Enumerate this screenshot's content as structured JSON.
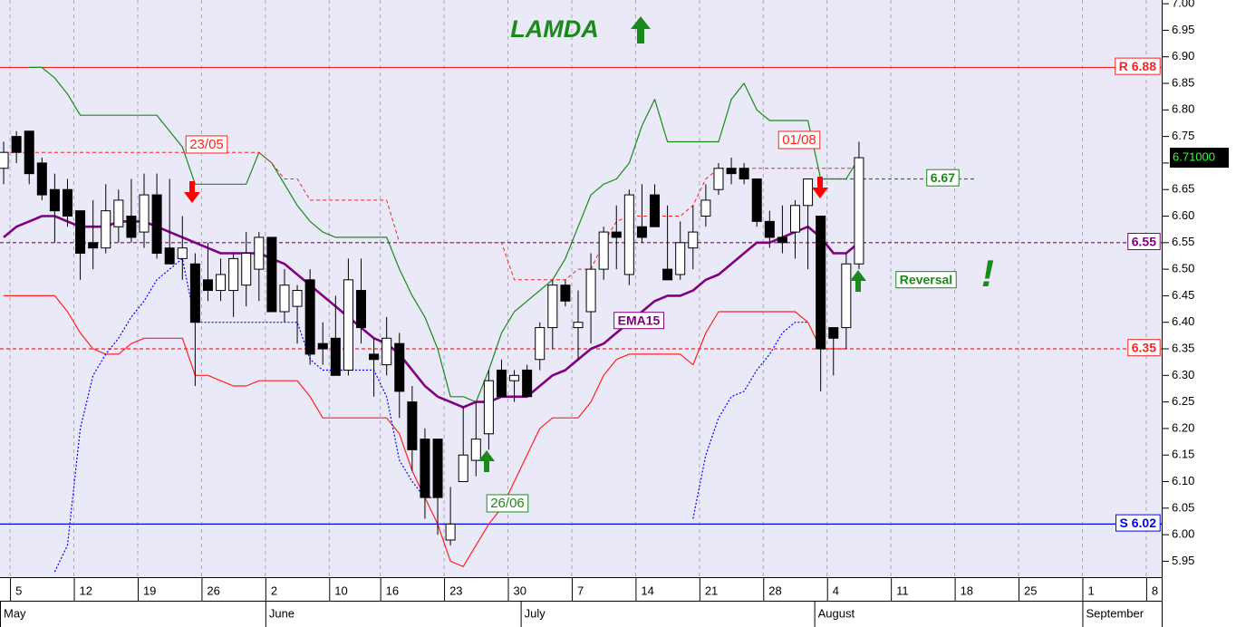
{
  "chart_data": {
    "type": "candlestick",
    "title": "LAMDA",
    "title_color": "#1a8a1a",
    "background": "#e9e9f8",
    "grid": true,
    "categories": [
      null,
      "5",
      null,
      null,
      null,
      null,
      "12",
      null,
      null,
      null,
      null,
      "19",
      null,
      null,
      null,
      null,
      "26",
      null,
      null,
      null,
      null,
      "2",
      null,
      null,
      null,
      null,
      "10",
      null,
      null,
      null,
      "16",
      null,
      null,
      null,
      null,
      "23",
      null,
      null,
      null,
      null,
      "30",
      null,
      null,
      null,
      null,
      "7",
      null,
      null,
      null,
      null,
      "14",
      null,
      null,
      null,
      null,
      "21",
      null,
      null,
      null,
      null,
      "28",
      null,
      null,
      null,
      null,
      "4",
      null,
      null,
      null,
      null,
      "11",
      null,
      null,
      null,
      null,
      "18",
      null,
      null,
      null,
      null,
      "25",
      null,
      null,
      null,
      null,
      "1",
      null,
      null,
      null,
      null,
      "8"
    ],
    "months": [
      "May",
      null,
      null,
      null,
      null,
      null,
      null,
      null,
      null,
      null,
      null,
      null,
      null,
      null,
      null,
      null,
      null,
      null,
      null,
      null,
      null,
      "June",
      null,
      null,
      null,
      null,
      null,
      null,
      null,
      null,
      null,
      null,
      null,
      null,
      null,
      null,
      null,
      null,
      null,
      null,
      null,
      "July",
      null,
      null,
      null,
      null,
      null,
      null,
      null,
      null,
      null,
      null,
      null,
      null,
      null,
      null,
      null,
      null,
      null,
      null,
      null,
      null,
      null,
      null,
      "August",
      null,
      null,
      null,
      null,
      null,
      null,
      null,
      null,
      null,
      null,
      null,
      null,
      null,
      null,
      null,
      null,
      null,
      null,
      null,
      null,
      "September",
      null,
      null,
      null,
      null,
      null
    ],
    "open": [
      6.69,
      6.75,
      6.76,
      6.7,
      6.65,
      6.65,
      6.61,
      6.55,
      6.54,
      6.58,
      6.6,
      6.57,
      6.64,
      6.54,
      6.52,
      6.51,
      6.48,
      6.46,
      6.46,
      6.47,
      6.5,
      6.56,
      6.42,
      6.43,
      6.48,
      6.36,
      6.37,
      6.31,
      6.46,
      6.34,
      6.32,
      6.36,
      6.25,
      6.18,
      6.18,
      5.99,
      6.1,
      6.14,
      6.19,
      6.31,
      6.29,
      6.31,
      6.33,
      6.39,
      6.47,
      6.39,
      6.42,
      6.5,
      6.57,
      6.49,
      6.58,
      6.64,
      6.5,
      6.49,
      6.54,
      6.6,
      6.65,
      6.69,
      6.69,
      6.67,
      6.59,
      6.56,
      6.57,
      6.62,
      6.6,
      6.39,
      6.39,
      6.51,
      null,
      null,
      null,
      null,
      null,
      null,
      null,
      null,
      null,
      null,
      null,
      null,
      null,
      null,
      null,
      null,
      null,
      null,
      null,
      null,
      null,
      null,
      null
    ],
    "high": [
      6.74,
      6.76,
      6.76,
      6.71,
      6.68,
      6.67,
      6.61,
      6.63,
      6.66,
      6.65,
      6.67,
      6.68,
      6.68,
      6.67,
      6.6,
      6.53,
      6.55,
      6.52,
      6.53,
      6.57,
      6.57,
      6.56,
      6.5,
      6.47,
      6.5,
      6.4,
      6.45,
      6.52,
      6.52,
      6.37,
      6.41,
      6.38,
      6.28,
      6.2,
      6.18,
      6.09,
      6.24,
      6.25,
      6.31,
      6.33,
      6.31,
      6.32,
      6.4,
      6.48,
      6.48,
      6.46,
      6.53,
      6.58,
      6.62,
      6.65,
      6.66,
      6.66,
      6.62,
      6.59,
      6.62,
      6.66,
      6.7,
      6.71,
      6.7,
      6.67,
      6.61,
      6.62,
      6.63,
      6.67,
      6.6,
      6.39,
      6.53,
      6.74,
      null,
      null,
      null,
      null,
      null,
      null,
      null,
      null,
      null,
      null,
      null,
      null,
      null,
      null,
      null,
      null,
      null,
      null,
      null,
      null,
      null,
      null,
      null
    ],
    "low": [
      6.66,
      6.7,
      6.66,
      6.63,
      6.55,
      6.58,
      6.48,
      6.5,
      6.53,
      6.55,
      6.55,
      6.54,
      6.52,
      6.51,
      6.48,
      6.28,
      6.44,
      6.44,
      6.41,
      6.43,
      6.44,
      6.42,
      6.4,
      6.36,
      6.32,
      6.32,
      6.3,
      6.3,
      6.36,
      6.26,
      6.3,
      6.22,
      6.12,
      6.03,
      6.0,
      5.98,
      6.1,
      6.11,
      6.16,
      6.26,
      6.25,
      6.26,
      6.31,
      6.35,
      6.43,
      6.33,
      6.36,
      6.48,
      6.5,
      6.47,
      6.55,
      6.58,
      6.48,
      6.48,
      6.5,
      6.58,
      6.64,
      6.66,
      6.66,
      6.58,
      6.54,
      6.53,
      6.52,
      6.5,
      6.27,
      6.3,
      6.35,
      6.5,
      null,
      null,
      null,
      null,
      null,
      null,
      null,
      null,
      null,
      null,
      null,
      null,
      null,
      null,
      null,
      null,
      null,
      null,
      null,
      null,
      null,
      null,
      null
    ],
    "close": [
      6.72,
      6.72,
      6.68,
      6.64,
      6.61,
      6.6,
      6.53,
      6.54,
      6.61,
      6.63,
      6.56,
      6.64,
      6.53,
      6.51,
      6.54,
      6.4,
      6.46,
      6.49,
      6.52,
      6.53,
      6.56,
      6.42,
      6.47,
      6.46,
      6.34,
      6.35,
      6.3,
      6.48,
      6.39,
      6.33,
      6.37,
      6.27,
      6.16,
      6.07,
      6.07,
      6.02,
      6.15,
      6.18,
      6.29,
      6.26,
      6.3,
      6.26,
      6.39,
      6.47,
      6.44,
      6.4,
      6.5,
      6.57,
      6.56,
      6.64,
      6.56,
      6.58,
      6.48,
      6.55,
      6.57,
      6.63,
      6.69,
      6.68,
      6.67,
      6.59,
      6.56,
      6.55,
      6.62,
      6.67,
      6.35,
      6.37,
      6.51,
      6.71,
      null,
      null,
      null,
      null,
      null,
      null,
      null,
      null,
      null,
      null,
      null,
      null,
      null,
      null,
      null,
      null,
      null,
      null,
      null,
      null,
      null,
      null,
      null
    ],
    "lines": [
      {
        "color": "#1a8a1a",
        "style": "solid",
        "width": 1.2,
        "values": [
          null,
          null,
          6.88,
          6.88,
          6.86,
          6.83,
          6.79,
          6.79,
          6.79,
          6.79,
          6.79,
          6.79,
          6.79,
          6.76,
          6.73,
          6.66,
          6.66,
          6.66,
          6.66,
          6.66,
          6.72,
          6.7,
          6.66,
          6.62,
          6.59,
          6.57,
          6.56,
          6.56,
          6.56,
          6.56,
          6.56,
          6.5,
          6.45,
          6.41,
          6.35,
          6.26,
          6.26,
          6.25,
          6.31,
          6.38,
          6.42,
          6.44,
          6.46,
          6.48,
          6.52,
          6.58,
          6.64,
          6.66,
          6.67,
          6.7,
          6.77,
          6.82,
          6.74,
          6.74,
          6.74,
          6.74,
          6.74,
          6.82,
          6.85,
          6.8,
          6.78,
          6.78,
          6.78,
          6.78,
          6.67,
          6.67,
          6.67,
          6.71,
          null,
          null,
          null,
          null,
          null,
          null,
          null,
          null,
          null,
          null,
          null,
          null,
          null,
          null,
          null,
          null,
          null,
          null,
          null,
          null,
          null,
          null,
          null
        ]
      },
      {
        "color": "#ff2020",
        "style": "solid",
        "width": 1.2,
        "values": [
          6.45,
          6.45,
          6.45,
          6.45,
          6.45,
          6.42,
          6.38,
          6.35,
          6.34,
          6.34,
          6.36,
          6.37,
          6.37,
          6.37,
          6.37,
          6.3,
          6.3,
          6.29,
          6.28,
          6.28,
          6.29,
          6.29,
          6.29,
          6.29,
          6.26,
          6.22,
          6.22,
          6.22,
          6.22,
          6.22,
          6.22,
          6.19,
          6.12,
          6.07,
          6.02,
          5.95,
          5.94,
          5.98,
          6.02,
          6.05,
          6.1,
          6.15,
          6.2,
          6.22,
          6.22,
          6.22,
          6.25,
          6.3,
          6.33,
          6.34,
          6.34,
          6.34,
          6.34,
          6.34,
          6.32,
          6.38,
          6.42,
          6.42,
          6.42,
          6.42,
          6.42,
          6.42,
          6.42,
          6.4,
          6.35,
          6.35,
          6.35,
          null,
          null,
          null,
          null,
          null,
          null,
          null,
          null,
          null,
          null,
          null,
          null,
          null,
          null,
          null,
          null,
          null,
          null,
          null,
          null,
          null,
          null,
          null,
          null
        ]
      },
      {
        "color": "#0000ff",
        "style": "dotted",
        "width": 1.2,
        "values": [
          null,
          null,
          null,
          null,
          5.93,
          5.98,
          6.2,
          6.3,
          6.34,
          6.37,
          6.41,
          6.44,
          6.48,
          6.5,
          6.52,
          6.4,
          6.4,
          6.4,
          6.4,
          6.4,
          6.4,
          6.4,
          6.4,
          6.4,
          6.33,
          6.31,
          6.31,
          6.31,
          6.31,
          6.31,
          6.26,
          6.14,
          6.1,
          6.07,
          6.07,
          null,
          null,
          null,
          null,
          null,
          null,
          null,
          null,
          null,
          null,
          null,
          null,
          null,
          null,
          null,
          null,
          null,
          null,
          null,
          6.03,
          6.15,
          6.22,
          6.26,
          6.27,
          6.31,
          6.34,
          6.38,
          6.4,
          6.4,
          null,
          null,
          null,
          null,
          null,
          null,
          null,
          null,
          null,
          null,
          null,
          null,
          null,
          null,
          null,
          null,
          null,
          null,
          null,
          null,
          null,
          null,
          null,
          null,
          null,
          null,
          null
        ]
      },
      {
        "color": "#ff2020",
        "style": "dashed",
        "width": 1,
        "values": [
          6.72,
          6.72,
          6.72,
          6.72,
          6.72,
          6.72,
          6.72,
          6.72,
          6.72,
          6.72,
          6.72,
          6.72,
          6.72,
          6.72,
          6.72,
          6.72,
          6.72,
          6.72,
          6.72,
          6.72,
          6.72,
          6.7,
          6.67,
          6.67,
          6.63,
          6.63,
          6.63,
          6.63,
          6.63,
          6.63,
          6.63,
          6.55,
          6.55,
          6.55,
          6.55,
          6.55,
          6.55,
          6.55,
          6.55,
          6.55,
          6.48,
          6.48,
          6.48,
          6.48,
          6.48,
          6.5,
          6.5,
          6.55,
          6.59,
          6.6,
          6.6,
          6.6,
          6.6,
          6.6,
          6.62,
          6.67,
          6.69,
          6.69,
          6.69,
          6.69,
          6.69,
          6.69,
          6.69,
          6.69,
          6.69,
          6.69,
          6.69,
          6.69,
          null,
          null,
          null,
          null,
          null,
          null,
          null,
          null,
          null,
          null,
          null,
          null,
          null,
          null,
          null,
          null,
          null,
          null,
          null,
          null,
          null,
          null,
          null
        ]
      },
      {
        "name": "EMA15",
        "color": "#800080",
        "style": "solid",
        "width": 2.6,
        "values": [
          6.56,
          6.58,
          6.59,
          6.6,
          6.6,
          6.59,
          6.58,
          6.58,
          6.58,
          6.59,
          6.59,
          6.59,
          6.58,
          6.57,
          6.56,
          6.55,
          6.54,
          6.53,
          6.53,
          6.53,
          6.53,
          6.52,
          6.51,
          6.49,
          6.47,
          6.45,
          6.43,
          6.41,
          6.39,
          6.37,
          6.36,
          6.34,
          6.31,
          6.28,
          6.26,
          6.25,
          6.24,
          6.25,
          6.25,
          6.26,
          6.26,
          6.26,
          6.28,
          6.3,
          6.31,
          6.33,
          6.35,
          6.36,
          6.38,
          6.4,
          6.42,
          6.44,
          6.45,
          6.45,
          6.46,
          6.48,
          6.49,
          6.51,
          6.53,
          6.55,
          6.55,
          6.56,
          6.57,
          6.58,
          6.56,
          6.53,
          6.53,
          6.55,
          null,
          null,
          null,
          null,
          null,
          null,
          null,
          null,
          null,
          null,
          null,
          null,
          null,
          null,
          null,
          null,
          null,
          null,
          null,
          null,
          null,
          null,
          null
        ]
      }
    ],
    "levels": [
      {
        "value": 6.88,
        "label": "R 6.88",
        "color": "#ff2020",
        "style": "solid"
      },
      {
        "value": 6.02,
        "label": "S 6.02",
        "color": "#0000ff",
        "style": "solid"
      },
      {
        "value": 6.55,
        "label": "6.55",
        "color": "#800080",
        "style": "dashed"
      },
      {
        "value": 6.35,
        "label": "6.35",
        "color": "#ff2020",
        "style": "dashed"
      },
      {
        "value": 6.67,
        "label": "6.67",
        "color": "#1a8a1a",
        "style": "dashed"
      }
    ],
    "last_price": {
      "value": 6.71,
      "label": "6.71000"
    },
    "annotations": [
      {
        "text": "23/05",
        "color": "#ff2020"
      },
      {
        "text": "01/08",
        "color": "#ff2020"
      },
      {
        "text": "26/06",
        "color": "#1a8a1a"
      },
      {
        "text": "Reversal",
        "color": "#1a8a1a"
      },
      {
        "text": "!",
        "color": "#1a8a1a"
      }
    ],
    "ylim": [
      5.92,
      7.007
    ],
    "yticks": [
      {
        "value": 5.95,
        "label": "5.95"
      },
      {
        "value": 6.0,
        "label": "6.00"
      },
      {
        "value": 6.05,
        "label": "6.05"
      },
      {
        "value": 6.1,
        "label": "6.10"
      },
      {
        "value": 6.15,
        "label": "6.15"
      },
      {
        "value": 6.2,
        "label": "6.20"
      },
      {
        "value": 6.25,
        "label": "6.25"
      },
      {
        "value": 6.3,
        "label": "6.30"
      },
      {
        "value": 6.35,
        "label": "6.35"
      },
      {
        "value": 6.4,
        "label": "6.40"
      },
      {
        "value": 6.45,
        "label": "6.45"
      },
      {
        "value": 6.5,
        "label": "6.50"
      },
      {
        "value": 6.55,
        "label": "6.55"
      },
      {
        "value": 6.6,
        "label": "6.60"
      },
      {
        "value": 6.65,
        "label": "6.65"
      },
      {
        "value": 6.7,
        "label": "6.70"
      },
      {
        "value": 6.75,
        "label": "6.75"
      },
      {
        "value": 6.8,
        "label": "6.80"
      },
      {
        "value": 6.85,
        "label": "6.85"
      },
      {
        "value": 6.9,
        "label": "6.90"
      },
      {
        "value": 6.95,
        "label": "6.95"
      },
      {
        "value": 7.0,
        "label": "7.00"
      }
    ]
  }
}
